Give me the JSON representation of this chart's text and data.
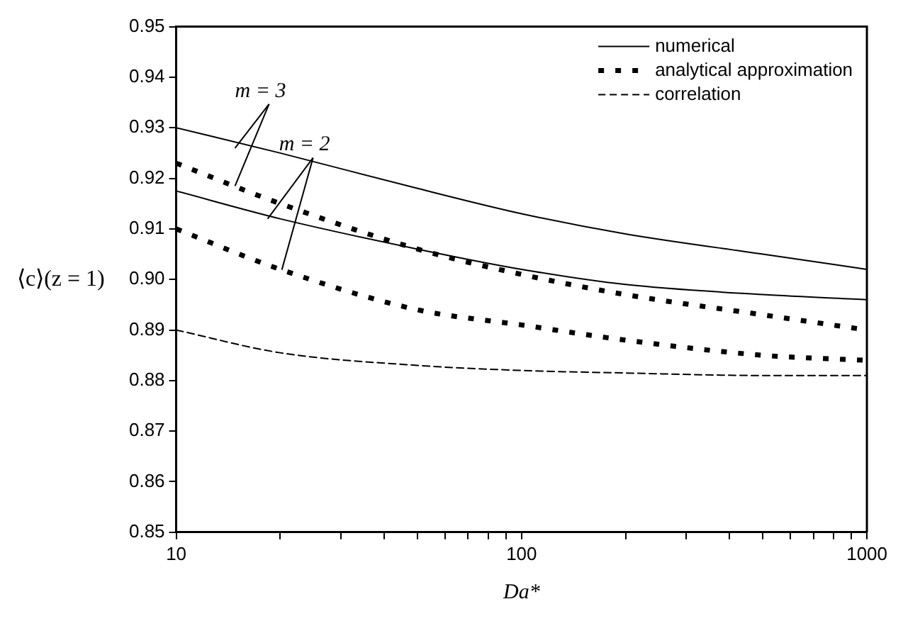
{
  "chart_data": {
    "type": "line",
    "xlabel": "Da*",
    "ylabel": "⟨c⟩(z = 1)",
    "x": [
      10,
      20,
      50,
      100,
      200,
      500,
      1000
    ],
    "series": [
      {
        "name": "numerical",
        "color": "#000000",
        "line_style": "solid",
        "values": [
          0.93,
          0.925,
          0.918,
          0.913,
          0.909,
          0.905,
          0.902
        ]
      },
      {
        "color": "#000000",
        "line_style": "solid",
        "values": [
          0.9175,
          0.912,
          0.906,
          0.902,
          0.899,
          0.897,
          0.896
        ]
      },
      {
        "name": "analytical approximation",
        "color": "#000000",
        "line_style": "dotted",
        "values": [
          0.923,
          0.915,
          0.906,
          0.901,
          0.897,
          0.893,
          0.89
        ]
      },
      {
        "color": "#000000",
        "line_style": "dotted",
        "values": [
          0.91,
          0.902,
          0.894,
          0.891,
          0.888,
          0.885,
          0.884
        ]
      },
      {
        "name": "correlation",
        "color": "#000000",
        "line_style": "dashed",
        "values": [
          0.89,
          0.8855,
          0.883,
          0.882,
          0.8815,
          0.881,
          0.881
        ]
      }
    ],
    "annotations": [
      {
        "text": "m = 3",
        "x": 14.8,
        "y": 0.926
      },
      {
        "text": "m = 2",
        "x": 18.4,
        "y": 0.912
      }
    ],
    "log": "x",
    "xlim": [
      10,
      1000
    ],
    "xticks": [
      10,
      {
        "value": 20,
        "label": null
      },
      {
        "value": 30,
        "label": null
      },
      {
        "value": 40,
        "label": null
      },
      {
        "value": 50,
        "label": null
      },
      {
        "value": 60,
        "label": null
      },
      {
        "value": 70,
        "label": null
      },
      {
        "value": 80,
        "label": null
      },
      {
        "value": 90,
        "label": null
      },
      100,
      {
        "value": 200,
        "label": null
      },
      {
        "value": 300,
        "label": null
      },
      {
        "value": 400,
        "label": null
      },
      {
        "value": 500,
        "label": null
      },
      {
        "value": 600,
        "label": null
      },
      {
        "value": 700,
        "label": null
      },
      {
        "value": 800,
        "label": null
      },
      {
        "value": 900,
        "label": null
      },
      1000
    ],
    "ylim": [
      0.85,
      0.95
    ],
    "yticks": [
      0.85,
      0.86,
      0.87,
      0.88,
      0.89,
      {
        "value": 0.9,
        "label": "0.90"
      },
      0.91,
      0.92,
      0.93,
      0.94,
      0.95
    ],
    "grid": false,
    "legend": "top right",
    "marker": "none"
  }
}
